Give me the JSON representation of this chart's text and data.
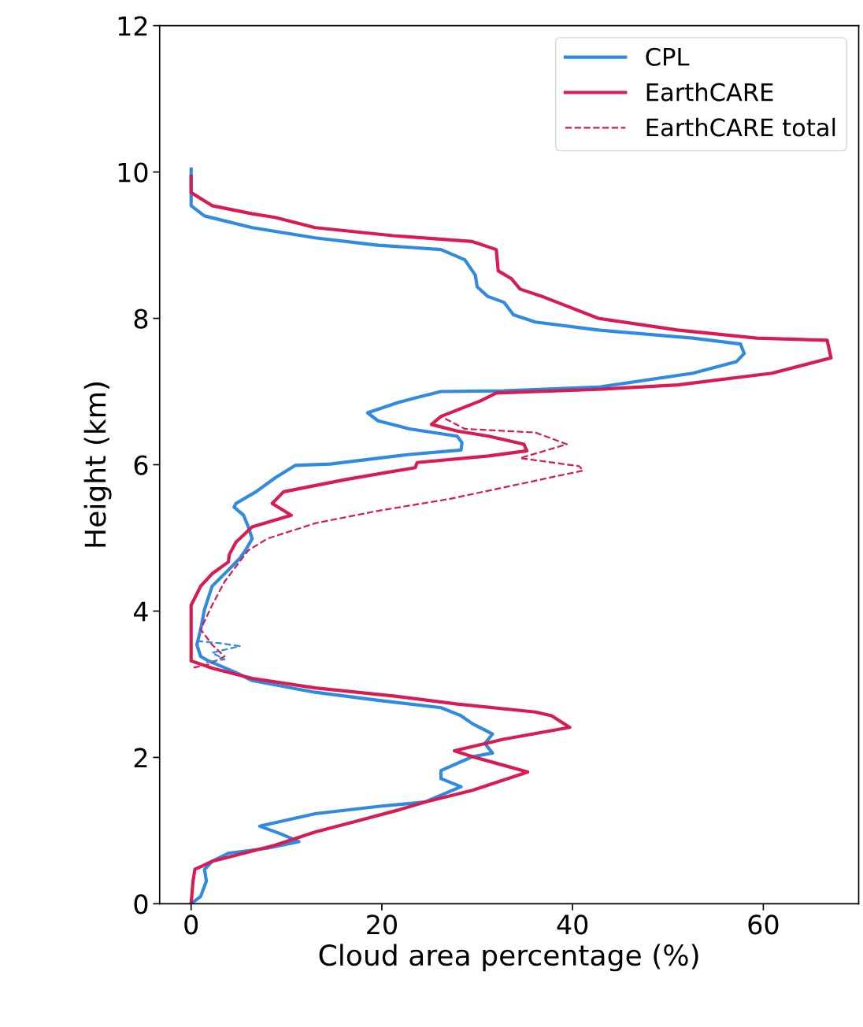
{
  "chart_data": {
    "type": "line",
    "xlabel": "Cloud area percentage (%)",
    "ylabel": "Height (km)",
    "xlim": [
      -3.3,
      70
    ],
    "xticks": [
      0,
      20,
      40,
      60
    ],
    "ylim": [
      0,
      12
    ],
    "yticks": [
      0,
      2,
      4,
      6,
      8,
      10,
      12
    ],
    "grid": false,
    "legend": "top right",
    "series": [
      {
        "name": "CPL",
        "color": "#2f8ae0",
        "line_style": "solid",
        "x": [
          0,
          0,
          1.4,
          6.4,
          13,
          19.6,
          26.2,
          28.7,
          29.8,
          30,
          31.1,
          32.8,
          33.8,
          36.1,
          42.7,
          52.6,
          57.6,
          58.0,
          57.2,
          52.6,
          42.7,
          32.8,
          26.2,
          23.7,
          21.7,
          18.5,
          19.6,
          22.9,
          27.9,
          28.4,
          28.3,
          22.9,
          14.6,
          10.9,
          8.8,
          6.8,
          4.7,
          4.5,
          5.5,
          6.0,
          6.4,
          5.7,
          5.1,
          3.9,
          2.2,
          1.4,
          1.0,
          0.6,
          1.0,
          1.8,
          4.7,
          6.4,
          13,
          19.6,
          26.2,
          28.3,
          29.5,
          31.6,
          30.8,
          31.6,
          29.5,
          26.2,
          26.2,
          28.3,
          24.5,
          19.6,
          13,
          7.2,
          9.3,
          11.3,
          8.0,
          3.9,
          2.2,
          1.4,
          1.6,
          1.0,
          0
        ],
        "values": [
          10.04,
          9.54,
          9.4,
          9.24,
          9.1,
          9.0,
          8.94,
          8.8,
          8.59,
          8.43,
          8.3,
          8.22,
          8.05,
          7.95,
          7.84,
          7.73,
          7.65,
          7.52,
          7.41,
          7.25,
          7.06,
          7.01,
          7.0,
          6.92,
          6.85,
          6.71,
          6.6,
          6.49,
          6.39,
          6.3,
          6.2,
          6.14,
          6.01,
          5.99,
          5.82,
          5.63,
          5.47,
          5.42,
          5.31,
          5.15,
          4.99,
          4.83,
          4.72,
          4.56,
          4.34,
          4.02,
          3.75,
          3.54,
          3.38,
          3.32,
          3.16,
          3.05,
          2.89,
          2.78,
          2.68,
          2.57,
          2.46,
          2.32,
          2.19,
          2.06,
          2.01,
          1.82,
          1.71,
          1.6,
          1.39,
          1.33,
          1.23,
          1.06,
          0.96,
          0.85,
          0.76,
          0.69,
          0.58,
          0.47,
          0.31,
          0.1,
          0
        ]
      },
      {
        "name": "EarthCARE",
        "color": "#d81b50",
        "line_style": "solid",
        "x": [
          0,
          0,
          2.2,
          6.4,
          8.8,
          13,
          21.2,
          29.5,
          32,
          32.2,
          33.6,
          34.5,
          37,
          42.7,
          51,
          59.3,
          66.7,
          67.1,
          60.9,
          51,
          42.7,
          32,
          30.3,
          26.2,
          25.2,
          27.9,
          31.2,
          34.9,
          35.2,
          31.2,
          23.7,
          23.5,
          16.3,
          9.7,
          8.5,
          10.5,
          6.4,
          4.7,
          4.0,
          3.9,
          2.2,
          1.0,
          0,
          0,
          0,
          2.2,
          6.4,
          13,
          21.2,
          27.9,
          36.1,
          37.8,
          39.7,
          32.8,
          27.6,
          29.5,
          32,
          35.3,
          29.5,
          24.5,
          21.7,
          17.1,
          13,
          8.8,
          5.5,
          2.2,
          0.4,
          0.2,
          0
        ],
        "values": [
          9.94,
          9.72,
          9.54,
          9.43,
          9.38,
          9.24,
          9.13,
          9.05,
          8.94,
          8.65,
          8.54,
          8.4,
          8.29,
          8.0,
          7.84,
          7.73,
          7.7,
          7.46,
          7.25,
          7.09,
          7.03,
          6.98,
          6.87,
          6.66,
          6.55,
          6.46,
          6.39,
          6.28,
          6.19,
          6.12,
          6.03,
          5.96,
          5.8,
          5.63,
          5.47,
          5.31,
          5.15,
          4.94,
          4.77,
          4.67,
          4.51,
          4.34,
          4.08,
          3.65,
          3.32,
          3.22,
          3.08,
          2.95,
          2.84,
          2.73,
          2.62,
          2.57,
          2.41,
          2.25,
          2.09,
          2.01,
          1.92,
          1.8,
          1.55,
          1.39,
          1.28,
          1.12,
          0.98,
          0.8,
          0.69,
          0.58,
          0.47,
          0.31,
          0
        ]
      },
      {
        "name": "EarthCARE total",
        "color": "#d81b50",
        "line_style": "dashed",
        "x": [
          32,
          30.3,
          26.2,
          28.7,
          36.1,
          39.4,
          34.5,
          40.7,
          41.1,
          32.8,
          27,
          19.6,
          13,
          8.0,
          6.0,
          4.7,
          3.5,
          2.2,
          1.0,
          2.2,
          3.5,
          1.8,
          0
        ],
        "values": [
          6.98,
          6.87,
          6.66,
          6.49,
          6.44,
          6.28,
          6.09,
          5.98,
          5.92,
          5.69,
          5.53,
          5.37,
          5.2,
          4.99,
          4.83,
          4.61,
          4.4,
          4.08,
          3.75,
          3.54,
          3.38,
          3.27,
          3.22
        ]
      },
      {
        "color": "#2f8ae0",
        "line_style": "dashed",
        "x": [
          0.6,
          3.1,
          5.1,
          2.2,
          3.5,
          1.6
        ],
        "values": [
          3.59,
          3.56,
          3.52,
          3.43,
          3.34,
          3.3
        ]
      }
    ]
  }
}
